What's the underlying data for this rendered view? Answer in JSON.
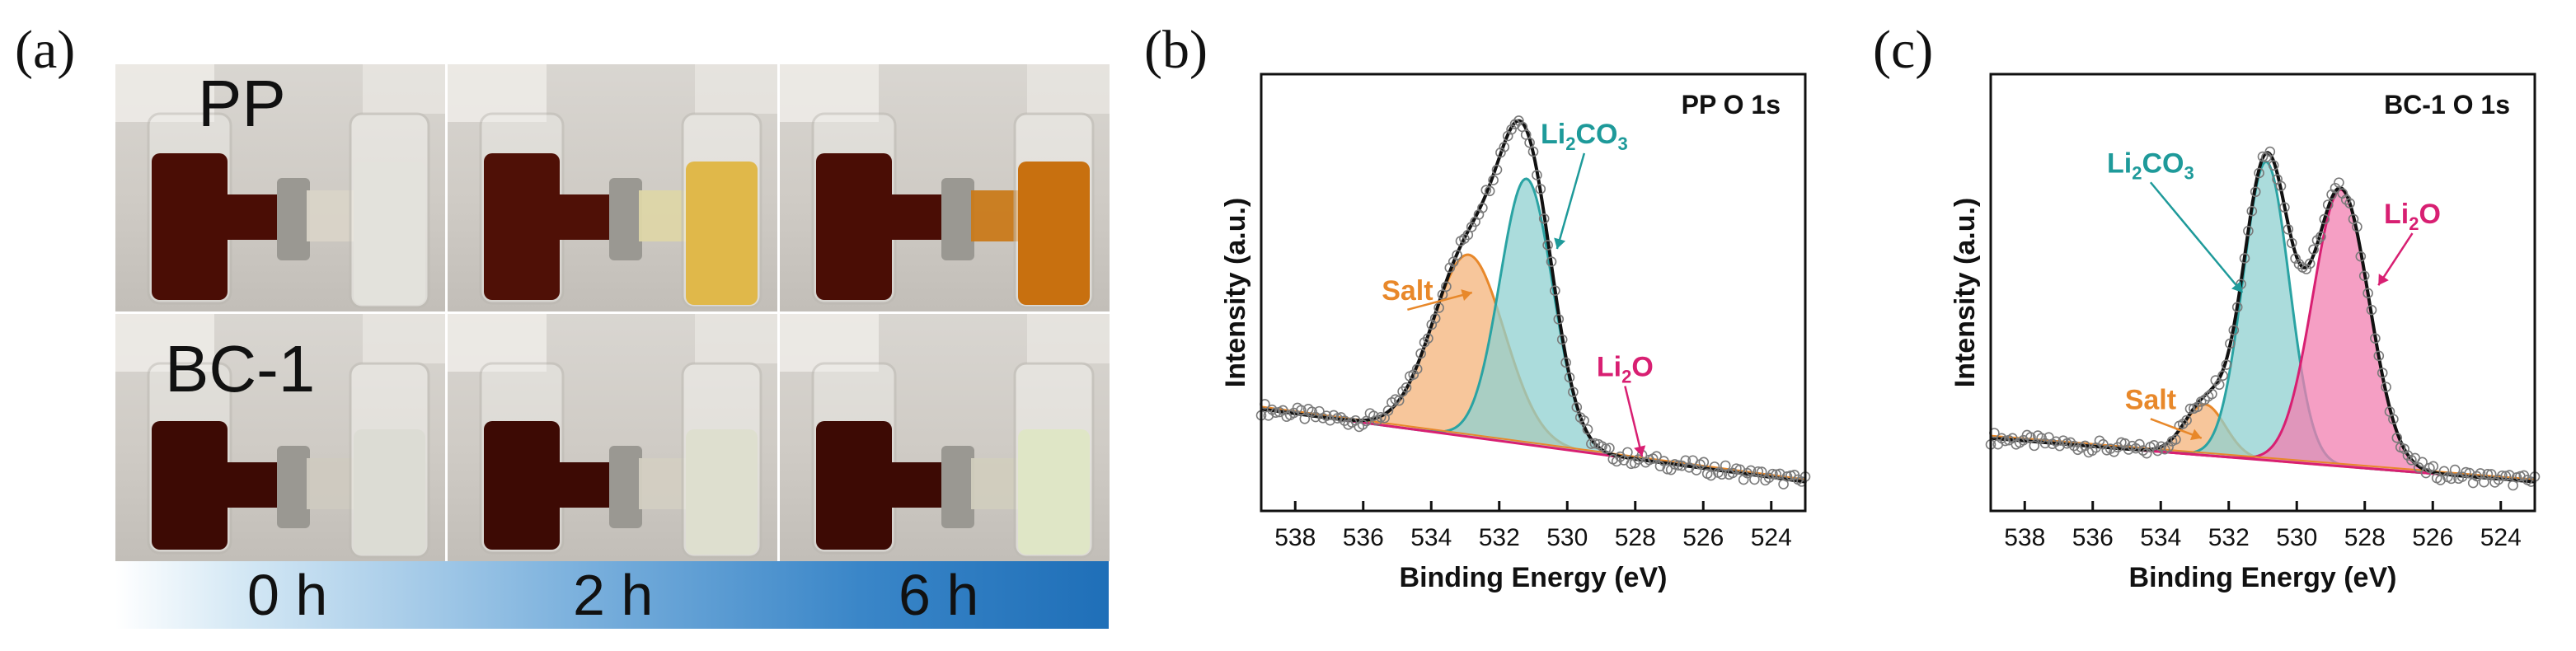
{
  "panel_a": {
    "letter": "(a)",
    "rows": [
      "PP",
      "BC-1"
    ],
    "times": [
      "0 h",
      "2 h",
      "6 h"
    ],
    "cells": [
      {
        "row": "PP",
        "time": "0 h",
        "left_liquid": "#4a0d05",
        "bridge_liquid": "#d9d4c8",
        "right_liquid": "#e3e2dc"
      },
      {
        "row": "PP",
        "time": "2 h",
        "left_liquid": "#4f1006",
        "bridge_liquid": "#ddd6a8",
        "right_liquid": "#e0b84a"
      },
      {
        "row": "PP",
        "time": "6 h",
        "left_liquid": "#4a0d05",
        "bridge_liquid": "#c97a1a",
        "right_liquid": "#c8700f"
      },
      {
        "row": "BC-1",
        "time": "0 h",
        "left_liquid": "#3d0a04",
        "bridge_liquid": "#cfcac0",
        "right_liquid": "#dcdcd4"
      },
      {
        "row": "BC-1",
        "time": "2 h",
        "left_liquid": "#3d0a04",
        "bridge_liquid": "#d3cfc2",
        "right_liquid": "#dedfcf"
      },
      {
        "row": "BC-1",
        "time": "6 h",
        "left_liquid": "#3d0a04",
        "bridge_liquid": "#d1cebe",
        "right_liquid": "#dfe6c6"
      }
    ]
  },
  "chart_data": [
    {
      "letter": "(b)",
      "type": "line",
      "title": "PP O 1s",
      "xlabel": "Binding Energy (eV)",
      "ylabel": "Intensity (a.u.)",
      "xlim": [
        539,
        523
      ],
      "ylim": [
        0,
        1.2
      ],
      "xticks": [
        538,
        536,
        534,
        532,
        530,
        528,
        526,
        524
      ],
      "baseline": {
        "x": [
          539,
          523
        ],
        "y": [
          0.28,
          0.08
        ]
      },
      "components": [
        {
          "name": "Salt",
          "center": 532.9,
          "sigma": 1.05,
          "height": 0.5,
          "fill": "#f4b37a",
          "stroke": "#e8882a"
        },
        {
          "name": "Li2CO3",
          "center": 531.2,
          "sigma": 0.78,
          "height": 0.73,
          "fill": "#8fd0d0",
          "stroke": "#2aa3a3"
        },
        {
          "name": "Li2O",
          "center": 528.6,
          "sigma": 1.0,
          "height": 0.0,
          "fill": "#f27fb0",
          "stroke": "#d81f72"
        }
      ],
      "envelope_color": "#111111",
      "labels": [
        {
          "component": "Salt",
          "text": "Salt",
          "x": 534.7,
          "y": 0.58,
          "color": "#e8882a",
          "arrow_to": [
            532.8,
            0.6
          ]
        },
        {
          "component": "Li2CO3",
          "text": "Li",
          "sub": "2",
          "text2": "CO",
          "sub2": "3",
          "x": 529.5,
          "y": 1.01,
          "color": "#1e9a9a",
          "arrow_to": [
            530.3,
            0.72
          ]
        },
        {
          "component": "Li2O",
          "text": "Li",
          "sub": "2",
          "text2": "O",
          "x": 528.3,
          "y": 0.37,
          "color": "#d81f72",
          "arrow_to": [
            527.8,
            0.15
          ]
        }
      ]
    },
    {
      "letter": "(c)",
      "type": "line",
      "title": "BC-1 O 1s",
      "xlabel": "Binding Energy (eV)",
      "ylabel": "Intensity (a.u.)",
      "xlim": [
        539,
        523
      ],
      "ylim": [
        0,
        1.2
      ],
      "xticks": [
        538,
        536,
        534,
        532,
        530,
        528,
        526,
        524
      ],
      "baseline": {
        "x": [
          539,
          523
        ],
        "y": [
          0.2,
          0.08
        ]
      },
      "components": [
        {
          "name": "Salt",
          "center": 532.7,
          "sigma": 0.6,
          "height": 0.14,
          "fill": "#f4b37a",
          "stroke": "#e8882a"
        },
        {
          "name": "Li2CO3",
          "center": 530.9,
          "sigma": 0.68,
          "height": 0.82,
          "fill": "#8fd0d0",
          "stroke": "#2aa3a3"
        },
        {
          "name": "Li2O",
          "center": 528.7,
          "sigma": 0.83,
          "height": 0.76,
          "fill": "#f27fb0",
          "stroke": "#d81f72"
        }
      ],
      "envelope_color": "#111111",
      "labels": [
        {
          "component": "Li2CO3",
          "text": "Li",
          "sub": "2",
          "text2": "CO",
          "sub2": "3",
          "x": 534.3,
          "y": 0.93,
          "color": "#1e9a9a",
          "arrow_to": [
            531.6,
            0.6
          ]
        },
        {
          "component": "Li2O",
          "text": "Li",
          "sub": "2",
          "text2": "O",
          "x": 526.6,
          "y": 0.79,
          "color": "#d81f72",
          "arrow_to": [
            527.6,
            0.62
          ]
        },
        {
          "component": "Salt",
          "text": "Salt",
          "x": 534.3,
          "y": 0.28,
          "color": "#e8882a",
          "arrow_to": [
            532.8,
            0.2
          ]
        }
      ]
    }
  ]
}
